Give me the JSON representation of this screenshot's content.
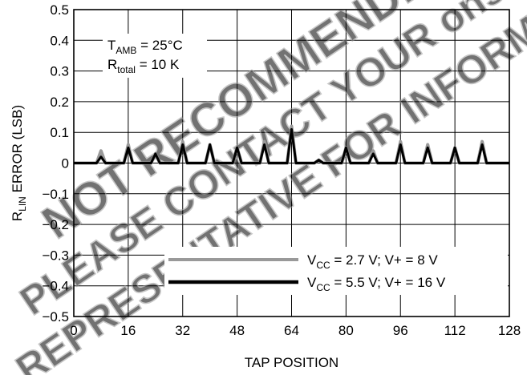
{
  "chart_data": {
    "type": "line",
    "title": "",
    "xlabel": "TAP POSITION",
    "ylabel": {
      "main": "R",
      "sub": "LIN",
      "rest": " ERROR (LSB)"
    },
    "xlim": [
      0,
      128
    ],
    "ylim": [
      -0.5,
      0.5
    ],
    "x_ticks": [
      0,
      16,
      32,
      48,
      64,
      80,
      96,
      112,
      128
    ],
    "y_ticks": [
      -0.5,
      -0.4,
      -0.3,
      -0.2,
      -0.1,
      0,
      0.1,
      0.2,
      0.3,
      0.4,
      0.5
    ],
    "y_tick_labels": [
      "−0.5",
      "−0.4",
      "−0.3",
      "−0.2",
      "−0.1",
      "0",
      "0.1",
      "0.2",
      "0.3",
      "0.4",
      "0.5"
    ],
    "grid": true,
    "annotations": [
      {
        "main": "T",
        "sub": "AMB",
        "rest": " = 25°C"
      },
      {
        "main": "R",
        "sub": "total",
        "rest": " = 10 K"
      }
    ],
    "series": [
      {
        "name": {
          "main": "V",
          "sub": "CC",
          "rest": " = 2.7 V; V+ = 8 V"
        },
        "color": "#999999",
        "spikes": [
          [
            8,
            0.04
          ],
          [
            16,
            0.06
          ],
          [
            24,
            0.03
          ],
          [
            32,
            0.07
          ],
          [
            40,
            0.06
          ],
          [
            48,
            0.05
          ],
          [
            56,
            0.07
          ],
          [
            64,
            0.12
          ],
          [
            72,
            0.01
          ],
          [
            80,
            0.05
          ],
          [
            88,
            0.04
          ],
          [
            96,
            0.07
          ],
          [
            104,
            0.06
          ],
          [
            112,
            0.05
          ],
          [
            120,
            0.07
          ]
        ]
      },
      {
        "name": {
          "main": "V",
          "sub": "CC",
          "rest": " = 5.5 V; V+ = 16 V"
        },
        "color": "#000000",
        "spikes": [
          [
            8,
            0.02
          ],
          [
            16,
            0.05
          ],
          [
            24,
            0.03
          ],
          [
            32,
            0.06
          ],
          [
            40,
            0.06
          ],
          [
            48,
            0.05
          ],
          [
            56,
            0.06
          ],
          [
            64,
            0.11
          ],
          [
            72,
            0.01
          ],
          [
            80,
            0.05
          ],
          [
            88,
            0.03
          ],
          [
            96,
            0.06
          ],
          [
            104,
            0.05
          ],
          [
            112,
            0.05
          ],
          [
            120,
            0.06
          ]
        ]
      }
    ],
    "legend_position": "bottom-right"
  },
  "watermark": {
    "lines": [
      "NOT RECOMMENDED FOR NEW DESIGN",
      "PLEASE CONTACT YOUR onsemi",
      "REPRESENTATIVE FOR INFORMATION"
    ]
  }
}
